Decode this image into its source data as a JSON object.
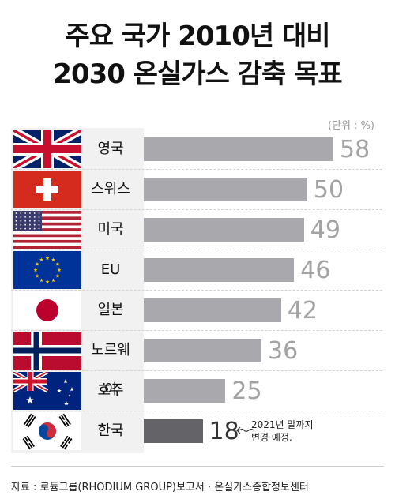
{
  "title_line1": "주요 국가 2010년 대비",
  "title_line2": "2030 온실가스 감축 목표",
  "unit": "(단위 : %)",
  "note_line1": "2021년 말까지",
  "note_line2": "변경 예정.",
  "source": "자료 : 로듐그룹(RHODIUM GROUP)보고서 · 온실가스종합정보센터",
  "colors": {
    "bar": "#a9a8ac",
    "highlight_bar": "#646368",
    "value": "#a3a3a3",
    "highlight_value": "#333333"
  },
  "chart_data": {
    "type": "bar",
    "orientation": "horizontal",
    "title": "주요 국가 2010년 대비 2030 온실가스 감축 목표",
    "unit": "%",
    "categories": [
      "영국",
      "스위스",
      "미국",
      "EU",
      "일본",
      "노르웨이",
      "호주",
      "한국"
    ],
    "values": [
      58,
      50,
      49,
      46,
      42,
      36,
      25,
      18
    ],
    "flags": [
      "uk-flag",
      "switzerland-flag",
      "usa-flag",
      "eu-flag",
      "japan-flag",
      "norway-flag",
      "australia-flag",
      "korea-flag"
    ],
    "highlight": "한국",
    "grid": false,
    "legend": "none"
  }
}
